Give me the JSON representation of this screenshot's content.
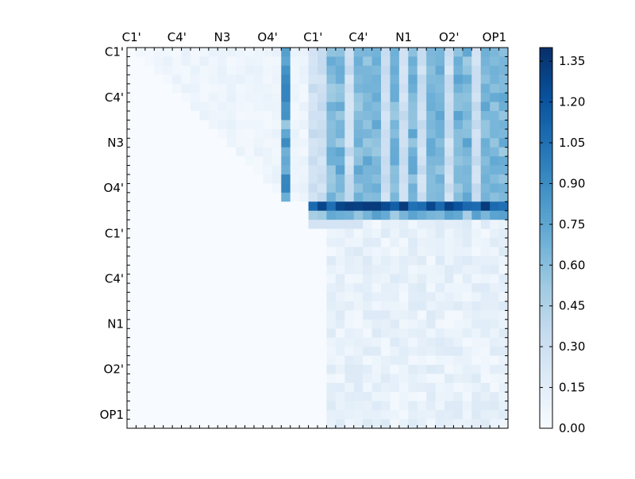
{
  "chart_data": {
    "type": "heatmap",
    "title": "",
    "xlabel": "",
    "ylabel": "",
    "n": 42,
    "top_tick_labels": [
      "C1'",
      "C4'",
      "N3",
      "O4'",
      "C1'",
      "C4'",
      "N1",
      "O2'",
      "OP1"
    ],
    "left_tick_labels": [
      "C1'",
      "C4'",
      "N3",
      "O4'",
      "C1'",
      "C4'",
      "N1",
      "O2'",
      "OP1"
    ],
    "colorbar": {
      "min": 0.0,
      "max": 1.4,
      "ticks": [
        "0.00",
        "0.15",
        "0.30",
        "0.45",
        "0.60",
        "0.75",
        "0.90",
        "1.05",
        "1.20",
        "1.35"
      ],
      "colormap": "Blues",
      "stops": [
        "#f7fbff",
        "#deebf7",
        "#c6dbef",
        "#9ecae1",
        "#6baed6",
        "#4292c6",
        "#2171b5",
        "#08519c",
        "#08306b"
      ]
    },
    "patterns": {
      "block_row_end": 16,
      "block_col_start": 20,
      "bright_row_a": 17,
      "bright_row_b": 18,
      "bright_col_a": 17,
      "bright_col_b": 18,
      "strong_col": 17,
      "stripe_cols": [
        22,
        23,
        25,
        26,
        27,
        29,
        31,
        33,
        34,
        36,
        37,
        39,
        40,
        41
      ],
      "lower_block_rows": [
        19,
        41
      ],
      "lower_block_cols": [
        22,
        41
      ]
    }
  }
}
